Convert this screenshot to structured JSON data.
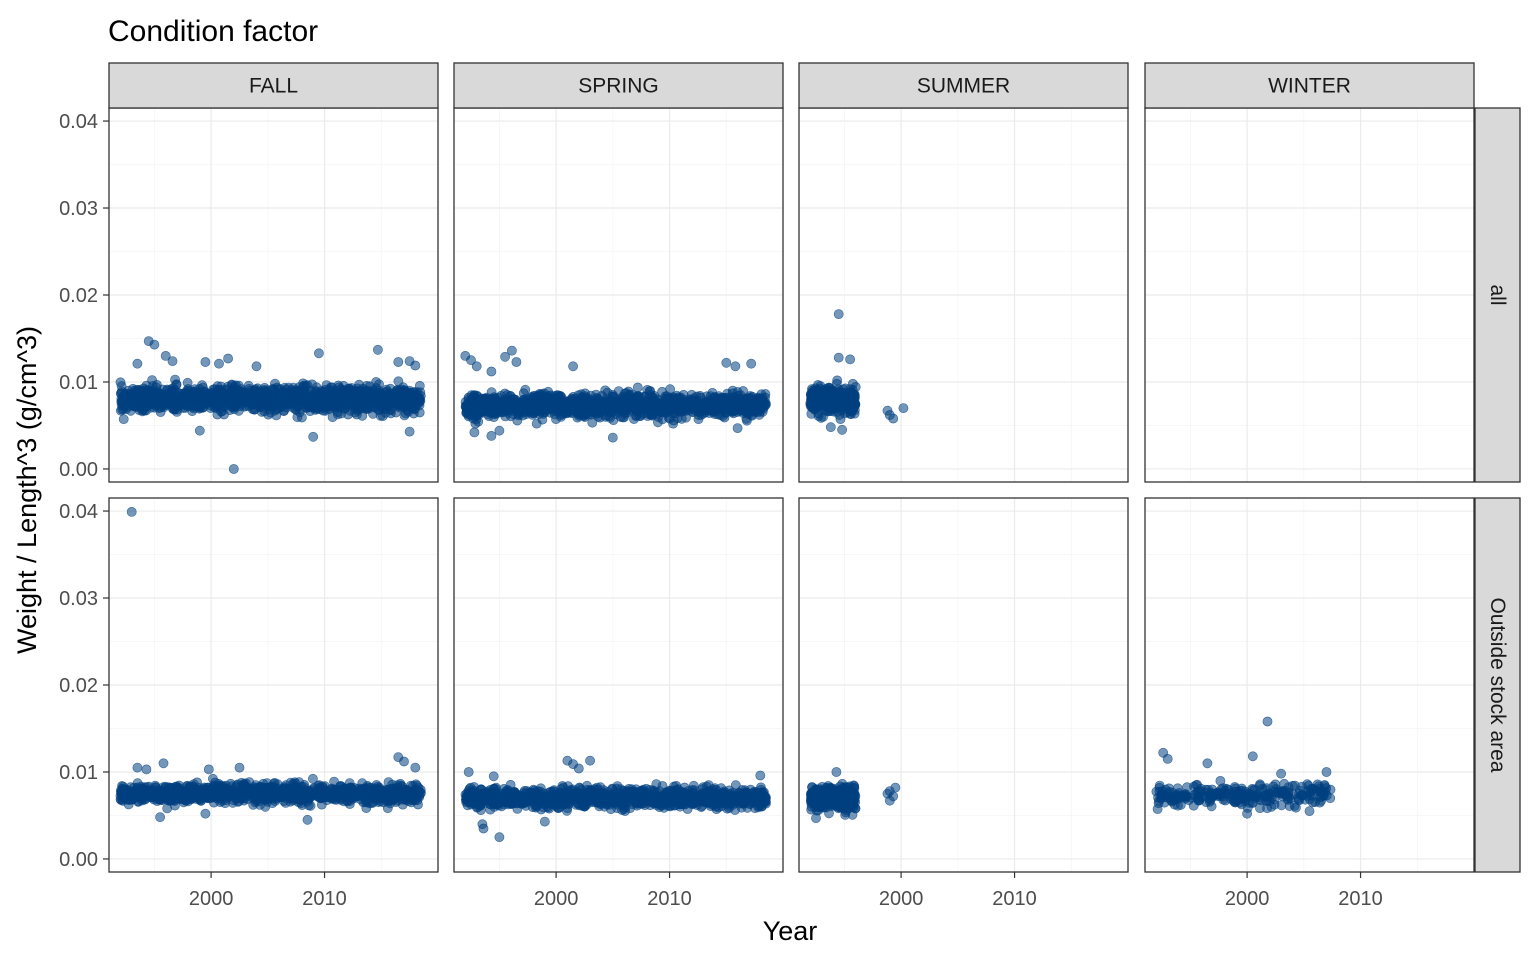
{
  "chart_data": {
    "type": "scatter",
    "title": "Condition factor",
    "xlabel": "Year",
    "ylabel": "Weight / Length^3 (g/cm^3)",
    "xlim": [
      1991,
      2020
    ],
    "ylim": [
      -0.0015,
      0.0415
    ],
    "x_ticks": [
      2000,
      2010
    ],
    "y_ticks": [
      0.0,
      0.01,
      0.02,
      0.03,
      0.04
    ],
    "y_tick_labels": [
      "0.00",
      "0.01",
      "0.02",
      "0.03",
      "0.04"
    ],
    "column_facets": [
      "FALL",
      "SPRING",
      "SUMMER",
      "WINTER"
    ],
    "row_facets": [
      "all",
      "Outside stock area"
    ],
    "grid": true,
    "point_color": "#004080",
    "point_opacity": 0.55,
    "panels": [
      {
        "column": "FALL",
        "row": "all",
        "bands": [
          {
            "x_range": [
              1992,
              2018.5
            ],
            "center": 0.008,
            "spread": 0.0012,
            "count": 1300
          }
        ],
        "points": [
          [
            1994.5,
            0.0147
          ],
          [
            1995.0,
            0.0143
          ],
          [
            1996.0,
            0.013
          ],
          [
            1996.6,
            0.0124
          ],
          [
            1993.5,
            0.0121
          ],
          [
            1999.5,
            0.0123
          ],
          [
            2000.7,
            0.0121
          ],
          [
            2001.5,
            0.0127
          ],
          [
            2004.0,
            0.0118
          ],
          [
            2009.5,
            0.0133
          ],
          [
            2014.7,
            0.0137
          ],
          [
            2016.5,
            0.0123
          ],
          [
            2017.5,
            0.0124
          ],
          [
            2018.0,
            0.0119
          ],
          [
            2009.0,
            0.0037
          ],
          [
            2002.0,
            0.0
          ],
          [
            2017.5,
            0.0043
          ],
          [
            1999.0,
            0.0044
          ]
        ]
      },
      {
        "column": "SPRING",
        "row": "all",
        "bands": [
          {
            "x_range": [
              1992,
              2018.5
            ],
            "center": 0.0073,
            "spread": 0.0011,
            "count": 1300
          }
        ],
        "points": [
          [
            1992.0,
            0.013
          ],
          [
            1992.5,
            0.0125
          ],
          [
            1993.0,
            0.0118
          ],
          [
            1994.3,
            0.0112
          ],
          [
            1995.5,
            0.0129
          ],
          [
            1996.1,
            0.0136
          ],
          [
            1996.5,
            0.0123
          ],
          [
            1992.8,
            0.0042
          ],
          [
            1994.3,
            0.0038
          ],
          [
            1995.0,
            0.0044
          ],
          [
            2001.5,
            0.0118
          ],
          [
            2005.0,
            0.0036
          ],
          [
            2015.0,
            0.0122
          ],
          [
            2015.8,
            0.0118
          ],
          [
            2017.2,
            0.0121
          ],
          [
            2016.0,
            0.0047
          ]
        ]
      },
      {
        "column": "SUMMER",
        "row": "all",
        "bands": [
          {
            "x_range": [
              1992,
              1996
            ],
            "center": 0.0079,
            "spread": 0.0012,
            "count": 320
          }
        ],
        "points": [
          [
            1994.5,
            0.0178
          ],
          [
            1994.5,
            0.0128
          ],
          [
            1995.5,
            0.0126
          ],
          [
            1994.8,
            0.0045
          ],
          [
            1993.8,
            0.0048
          ],
          [
            1998.8,
            0.0067
          ],
          [
            1999.0,
            0.0062
          ],
          [
            1999.3,
            0.0058
          ],
          [
            2000.2,
            0.007
          ]
        ]
      },
      {
        "column": "WINTER",
        "row": "all",
        "bands": [],
        "points": []
      },
      {
        "column": "FALL",
        "row": "Outside stock area",
        "bands": [
          {
            "x_range": [
              1992,
              2018.5
            ],
            "center": 0.0075,
            "spread": 0.0009,
            "count": 1100
          }
        ],
        "points": [
          [
            1993.0,
            0.0399
          ],
          [
            1993.5,
            0.0105
          ],
          [
            1994.3,
            0.0103
          ],
          [
            1995.8,
            0.011
          ],
          [
            1995.5,
            0.0048
          ],
          [
            1999.8,
            0.0103
          ],
          [
            1999.5,
            0.0052
          ],
          [
            2002.5,
            0.0105
          ],
          [
            2008.5,
            0.0045
          ],
          [
            2016.5,
            0.0117
          ],
          [
            2017.0,
            0.0112
          ],
          [
            2018.0,
            0.0105
          ]
        ]
      },
      {
        "column": "SPRING",
        "row": "Outside stock area",
        "bands": [
          {
            "x_range": [
              1992,
              2018.5
            ],
            "center": 0.007,
            "spread": 0.0009,
            "count": 1100
          }
        ],
        "points": [
          [
            1992.3,
            0.01
          ],
          [
            1994.5,
            0.0095
          ],
          [
            1993.5,
            0.004
          ],
          [
            1993.6,
            0.0035
          ],
          [
            1995.0,
            0.0025
          ],
          [
            2001.0,
            0.0113
          ],
          [
            2001.5,
            0.0109
          ],
          [
            2002.0,
            0.0104
          ],
          [
            2003.0,
            0.0113
          ],
          [
            1999.0,
            0.0043
          ],
          [
            2018.0,
            0.0096
          ]
        ]
      },
      {
        "column": "SUMMER",
        "row": "Outside stock area",
        "bands": [
          {
            "x_range": [
              1992,
              1996
            ],
            "center": 0.007,
            "spread": 0.0011,
            "count": 320
          }
        ],
        "points": [
          [
            1994.3,
            0.01
          ],
          [
            1992.5,
            0.0047
          ],
          [
            1999.0,
            0.0067
          ],
          [
            1999.0,
            0.0078
          ],
          [
            1999.5,
            0.0082
          ],
          [
            1999.3,
            0.0072
          ],
          [
            1998.8,
            0.0075
          ]
        ]
      },
      {
        "column": "WINTER",
        "row": "Outside stock area",
        "bands": [
          {
            "x_range": [
              1992,
              2007.5
            ],
            "center": 0.0073,
            "spread": 0.001,
            "count": 260
          }
        ],
        "points": [
          [
            1992.6,
            0.0122
          ],
          [
            1993.0,
            0.0115
          ],
          [
            1996.5,
            0.011
          ],
          [
            2001.8,
            0.0158
          ],
          [
            2000.5,
            0.0118
          ],
          [
            2003.0,
            0.0098
          ],
          [
            2007.0,
            0.01
          ],
          [
            2000.0,
            0.0052
          ],
          [
            2005.5,
            0.0055
          ]
        ]
      }
    ]
  }
}
